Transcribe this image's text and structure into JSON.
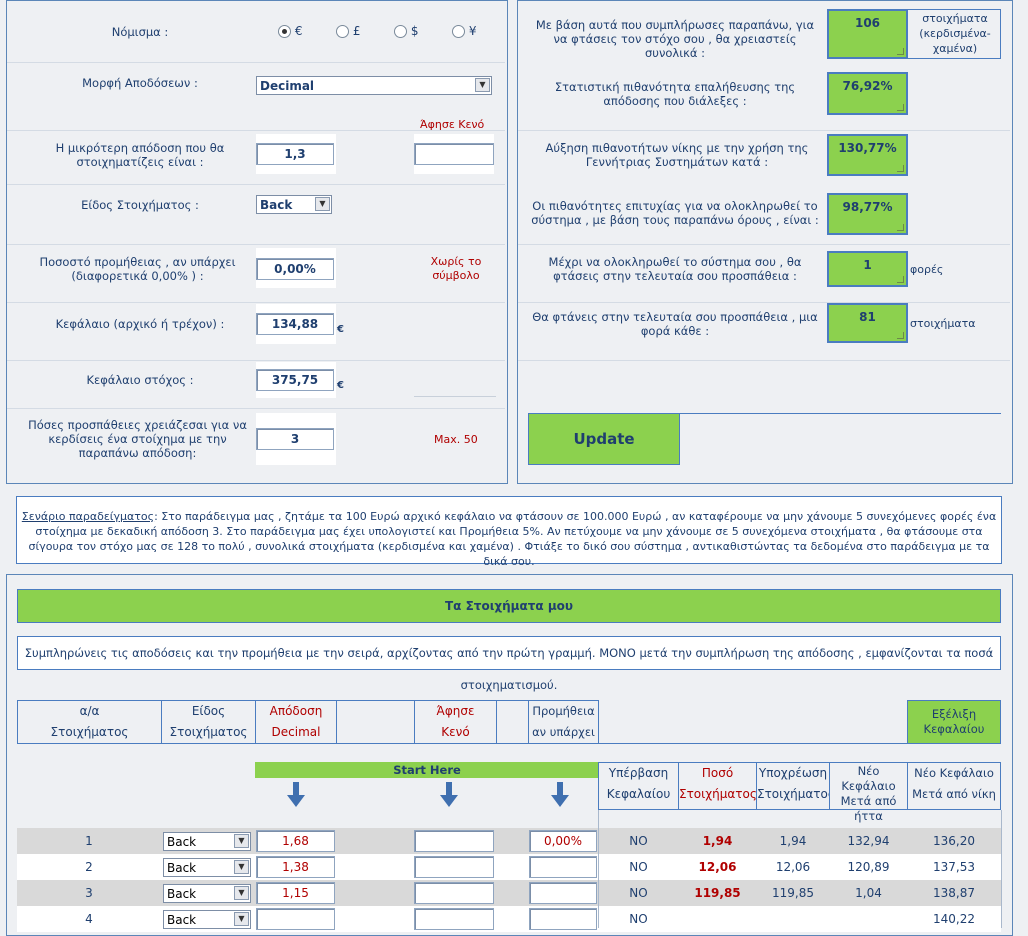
{
  "settings": {
    "currency_label": "Νόμισμα :",
    "currency_options": [
      "€",
      "£",
      "$",
      "¥"
    ],
    "odds_format_label": "Μορφή Αποδόσεων :",
    "odds_format_value": "Decimal",
    "leave_blank": "Άφησε Κενό",
    "min_odds_label": "Η μικρότερη απόδοση που θα στοιχηματίζεις είναι :",
    "min_odds_value": "1,3",
    "bet_type_label": "Είδος Στοιχήματος :",
    "bet_type_value": "Back",
    "commission_label": "Ποσοστό προμήθειας , αν υπάρχει (διαφορετικά 0,00% ) :",
    "commission_value": "0,00%",
    "no_symbol_note": "Χωρίς το σύμβολο",
    "capital_label": "Κεφάλαιο (αρχικό ή τρέχον) :",
    "capital_value": "134,88",
    "target_label": "Κεφάλαιο στόχος :",
    "target_value": "375,75",
    "attempts_label": "Πόσες προσπάθειες χρειάζεσαι για να κερδίσεις ένα στοίχημα με την παραπάνω απόδοση:",
    "attempts_value": "3",
    "max_note": "Max. 50",
    "euro_sign": "€"
  },
  "results": {
    "total_bets_label": "Με βάση αυτά που συμπλήρωσες παραπάνω, για να φτάσεις τον στόχο σου , θα χρειαστείς συνολικά :",
    "total_bets_value": "106",
    "total_bets_unit": "στοιχήματα (κερδισμένα-χαμένα)",
    "probability_label": "Στατιστική πιθανότητα επαλήθευσης της απόδοσης που διάλεξες :",
    "probability_value": "76,92%",
    "increase_label": "Αύξηση πιθανοτήτων νίκης με την χρήση της Γεννήτριας Συστημάτων κατά :",
    "increase_value": "130,77%",
    "success_label": "Οι πιθανότητες επιτυχίας για να ολοκληρωθεί το σύστημα , με βάση τους παραπάνω όρους , είναι :",
    "success_value": "98,77%",
    "times_label": "Μέχρι να ολοκληρωθεί το σύστημα σου , θα φτάσεις στην τελευταία σου προσπάθεια :",
    "times_value": "1",
    "times_unit": "φορές",
    "every_label": "Θα φτάνεις στην τελευταία σου προσπάθεια , μια φορά κάθε :",
    "every_value": "81",
    "every_unit": "στοιχήματα",
    "update_button": "Update"
  },
  "example": {
    "title": "Σενάριο παραδείγματος",
    "text": ": Στο παράδειγμα μας , ζητάμε τα 100 Ευρώ αρχικό κεφάλαιο να φτάσουν σε 100.000 Ευρώ , αν καταφέρουμε να μην χάνουμε 5 συνεχόμενες φορές ένα στοίχημα με δεκαδική απόδοση 3. Στο παράδειγμα μας έχει υπολογιστεί και Προμήθεια 5%. Αν πετύχουμε να μην χάνουμε σε 5 συνεχόμενα στοιχήματα , θα φτάσουμε στα σίγουρα τον στόχο μας σε 128 το πολύ , συνολικά στοιχήματα (κερδισμένα και χαμένα) . Φτιάξε το δικό σου σύστημα , αντικαθιστώντας τα δεδομένα στο παράδειγμα με τα δικά σου."
  },
  "bets": {
    "title": "Τα Στοιχήματα μου",
    "instructions": "Συμπληρώνεις τις αποδόσεις και την προμήθεια με την σειρά, αρχίζοντας από την πρώτη γραμμή. ΜΟΝΟ μετά την συμπλήρωση της απόδοσης , εμφανίζονται τα ποσά στοιχηματισμού.",
    "col_no_1": "α/α",
    "col_no_2": "Στοιχήματος",
    "col_type_1": "Είδος",
    "col_type_2": "Στοιχήματος",
    "col_odds_1": "Απόδοση",
    "col_odds_2": "Decimal",
    "col_blank_1": "Άφησε",
    "col_blank_2": "Κενό",
    "col_comm_1": "Προμήθεια",
    "col_comm_2": "αν υπάρχει",
    "col_evo": "Εξέλιξη Κεφαλαίου",
    "start_here": "Start Here",
    "col_over_1": "Υπέρβαση",
    "col_over_2": "Κεφαλαίου",
    "col_stake_1": "Ποσό",
    "col_stake_2": "Στοιχήματος",
    "col_liab_1": "Υποχρέωση",
    "col_liab_2": "Στοιχήματος",
    "col_loss_1": "Νέο Κεφάλαιο",
    "col_loss_2": "Μετά από",
    "col_loss_3": "ήττα",
    "col_win_1": "Νέο Κεφάλαιο",
    "col_win_2": "Μετά από νίκη",
    "rows": [
      {
        "n": "1",
        "type": "Back",
        "odds": "1,68",
        "comm": "0,00%",
        "over": "NO",
        "stake": "1,94",
        "liab": "1,94",
        "loss": "132,94",
        "win": "136,20"
      },
      {
        "n": "2",
        "type": "Back",
        "odds": "1,38",
        "comm": "",
        "over": "NO",
        "stake": "12,06",
        "liab": "12,06",
        "loss": "120,89",
        "win": "137,53"
      },
      {
        "n": "3",
        "type": "Back",
        "odds": "1,15",
        "comm": "",
        "over": "NO",
        "stake": "119,85",
        "liab": "119,85",
        "loss": "1,04",
        "win": "138,87"
      },
      {
        "n": "4",
        "type": "Back",
        "odds": "",
        "comm": "",
        "over": "NO",
        "stake": "",
        "liab": "",
        "loss": "",
        "win": "140,22"
      }
    ]
  },
  "colors": {
    "green": "#8cd14e",
    "border_blue": "#4a7cc0",
    "text_blue": "#1f3f6f",
    "red": "#b00000"
  }
}
